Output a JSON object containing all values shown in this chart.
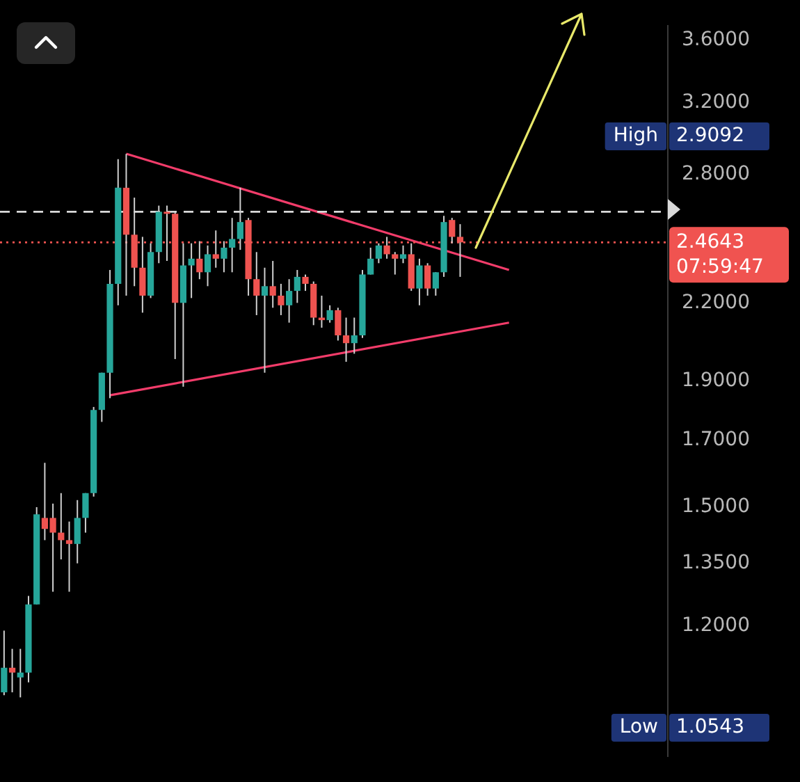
{
  "chart_data": {
    "type": "candlestick",
    "categories": [
      null,
      null,
      null,
      null,
      null,
      null,
      null,
      null,
      null,
      null,
      null,
      null,
      null,
      null,
      null,
      null,
      null,
      null,
      null,
      null,
      null,
      null,
      null,
      null,
      null,
      null,
      null,
      null,
      null,
      null,
      null,
      null,
      null,
      null,
      null,
      null,
      null,
      null,
      null,
      null,
      null,
      null,
      null,
      null,
      null,
      null,
      null,
      null,
      null,
      null,
      null,
      null,
      null,
      null,
      null,
      null,
      null,
      null,
      null,
      null,
      null,
      null,
      null,
      null,
      null,
      null,
      null,
      null,
      null,
      null,
      null,
      null,
      null,
      null,
      null,
      null,
      null,
      null,
      null,
      null,
      null,
      null
    ],
    "series": [
      {
        "ohlc": [
          [
            1.06,
            1.19,
            1.0543,
            1.11
          ],
          [
            1.11,
            1.15,
            1.06,
            1.1
          ],
          [
            1.09,
            1.15,
            1.05,
            1.1
          ],
          [
            1.1,
            1.27,
            1.08,
            1.25
          ],
          [
            1.25,
            1.5,
            1.25,
            1.48
          ],
          [
            1.47,
            1.63,
            1.41,
            1.44
          ],
          [
            1.47,
            1.51,
            1.28,
            1.43
          ],
          [
            1.43,
            1.54,
            1.36,
            1.41
          ],
          [
            1.41,
            1.46,
            1.28,
            1.4
          ],
          [
            1.4,
            1.52,
            1.35,
            1.47
          ],
          [
            1.47,
            1.54,
            1.43,
            1.54
          ],
          [
            1.54,
            1.81,
            1.53,
            1.8
          ],
          [
            1.8,
            1.93,
            1.76,
            1.93
          ],
          [
            1.93,
            2.34,
            1.84,
            2.28
          ],
          [
            2.28,
            2.88,
            2.19,
            2.73
          ],
          [
            2.73,
            2.9092,
            2.23,
            2.5
          ],
          [
            2.5,
            2.68,
            2.27,
            2.35
          ],
          [
            2.35,
            2.49,
            2.16,
            2.23
          ],
          [
            2.23,
            2.46,
            2.22,
            2.42
          ],
          [
            2.42,
            2.64,
            2.37,
            2.61
          ],
          [
            2.61,
            2.64,
            2.38,
            2.6
          ],
          [
            2.6,
            2.61,
            1.98,
            2.2
          ],
          [
            2.2,
            2.46,
            1.88,
            2.36
          ],
          [
            2.36,
            2.46,
            2.22,
            2.39
          ],
          [
            2.39,
            2.47,
            2.3,
            2.33
          ],
          [
            2.33,
            2.45,
            2.27,
            2.41
          ],
          [
            2.41,
            2.52,
            2.35,
            2.39
          ],
          [
            2.39,
            2.47,
            2.33,
            2.44
          ],
          [
            2.44,
            2.58,
            2.33,
            2.48
          ],
          [
            2.48,
            2.73,
            2.43,
            2.56
          ],
          [
            2.57,
            2.58,
            2.23,
            2.3
          ],
          [
            2.3,
            2.42,
            2.15,
            2.23
          ],
          [
            2.23,
            2.35,
            1.93,
            2.27
          ],
          [
            2.27,
            2.38,
            2.18,
            2.23
          ],
          [
            2.23,
            2.28,
            2.15,
            2.19
          ],
          [
            2.19,
            2.3,
            2.12,
            2.25
          ],
          [
            2.25,
            2.34,
            2.2,
            2.31
          ],
          [
            2.31,
            2.32,
            2.25,
            2.28
          ],
          [
            2.28,
            2.29,
            2.11,
            2.14
          ],
          [
            2.14,
            2.23,
            2.1,
            2.13
          ],
          [
            2.13,
            2.19,
            2.12,
            2.17
          ],
          [
            2.17,
            2.18,
            2.05,
            2.07
          ],
          [
            2.07,
            2.14,
            1.97,
            2.04
          ],
          [
            2.04,
            2.14,
            2.0,
            2.07
          ],
          [
            2.07,
            2.34,
            2.06,
            2.32
          ],
          [
            2.32,
            2.44,
            2.32,
            2.39
          ],
          [
            2.39,
            2.46,
            2.37,
            2.45
          ],
          [
            2.45,
            2.49,
            2.39,
            2.41
          ],
          [
            2.41,
            2.42,
            2.32,
            2.39
          ],
          [
            2.39,
            2.45,
            2.37,
            2.41
          ],
          [
            2.41,
            2.46,
            2.25,
            2.26
          ],
          [
            2.26,
            2.39,
            2.19,
            2.36
          ],
          [
            2.36,
            2.37,
            2.23,
            2.26
          ],
          [
            2.26,
            2.33,
            2.23,
            2.33
          ],
          [
            2.33,
            2.59,
            2.31,
            2.56
          ],
          [
            2.57,
            2.58,
            2.46,
            2.49
          ],
          [
            2.49,
            2.55,
            2.31,
            2.4643
          ],
          null,
          null,
          null,
          null,
          null,
          null,
          null,
          null,
          null,
          null,
          null,
          null,
          null,
          null,
          null,
          null,
          null,
          null,
          null,
          null,
          null,
          null,
          null,
          null,
          null
        ],
        "colors": [
          "#26a69a",
          "#ef5350",
          "#26a69a",
          "#26a69a",
          "#26a69a",
          "#ef5350",
          "#ef5350",
          "#ef5350",
          "#ef5350",
          "#26a69a",
          "#26a69a",
          "#26a69a",
          "#26a69a",
          "#26a69a",
          "#26a69a",
          "#ef5350",
          "#ef5350",
          "#ef5350",
          "#26a69a",
          "#26a69a",
          "#ef5350",
          "#ef5350",
          "#26a69a",
          "#26a69a",
          "#ef5350",
          "#26a69a",
          "#ef5350",
          "#26a69a",
          "#26a69a",
          "#26a69a",
          "#ef5350",
          "#ef5350",
          "#26a69a",
          "#ef5350",
          "#ef5350",
          "#26a69a",
          "#26a69a",
          "#ef5350",
          "#ef5350",
          "#ef5350",
          "#26a69a",
          "#ef5350",
          "#ef5350",
          "#26a69a",
          "#26a69a",
          "#26a69a",
          "#26a69a",
          "#ef5350",
          "#ef5350",
          "#26a69a",
          "#ef5350",
          "#26a69a",
          "#ef5350",
          "#26a69a",
          "#26a69a",
          "#ef5350",
          "#ef5350",
          null,
          null,
          null,
          null,
          null,
          null,
          null,
          null,
          null,
          null,
          null,
          null,
          null,
          null,
          null,
          null,
          null,
          null,
          null,
          null,
          null,
          null,
          null,
          null,
          null
        ]
      },
      {
        "type": "line",
        "color": "#f23c6a",
        "values": [
          null,
          null,
          null,
          null,
          null,
          null,
          null,
          null,
          null,
          null,
          null,
          null,
          null,
          null,
          null,
          2.91,
          null,
          null,
          null,
          null,
          null,
          null,
          null,
          null,
          null,
          null,
          null,
          null,
          null,
          null,
          null,
          null,
          null,
          null,
          null,
          null,
          null,
          null,
          null,
          null,
          null,
          null,
          null,
          null,
          null,
          null,
          null,
          null,
          null,
          null,
          null,
          null,
          null,
          null,
          null,
          null,
          null,
          null,
          null,
          null,
          null,
          null,
          2.34,
          null,
          null,
          null,
          null,
          null,
          null,
          null,
          null,
          null,
          null,
          null,
          null,
          null,
          null,
          null,
          null,
          null,
          null,
          null
        ]
      },
      {
        "type": "line",
        "color": "#f23c6a",
        "values": [
          null,
          null,
          null,
          null,
          null,
          null,
          null,
          null,
          null,
          null,
          null,
          null,
          null,
          1.85,
          null,
          null,
          null,
          null,
          null,
          null,
          null,
          null,
          null,
          null,
          null,
          null,
          null,
          null,
          null,
          null,
          null,
          null,
          null,
          null,
          null,
          null,
          null,
          null,
          null,
          null,
          null,
          null,
          null,
          null,
          null,
          null,
          null,
          null,
          null,
          null,
          null,
          null,
          null,
          null,
          null,
          null,
          null,
          null,
          null,
          null,
          null,
          null,
          2.12,
          null,
          null,
          null,
          null,
          null,
          null,
          null,
          null,
          null,
          null,
          null,
          null,
          null,
          null,
          null,
          null,
          null,
          null,
          null
        ]
      }
    ],
    "ylim": [
      0.94,
      3.7
    ],
    "yticks": [
      {
        "value": 1.2,
        "label": "1.2000"
      },
      {
        "value": 1.35,
        "label": "1.3500"
      },
      {
        "value": 1.5,
        "label": "1.5000"
      },
      {
        "value": 1.7,
        "label": "1.7000"
      },
      {
        "value": 1.9,
        "label": "1.9000"
      },
      {
        "value": 2.2,
        "label": "2.2000"
      },
      {
        "value": 2.8,
        "label": "2.8000"
      },
      {
        "value": 3.2,
        "label": "3.2000"
      },
      {
        "value": 3.6,
        "label": "3.6000"
      }
    ],
    "log": "y",
    "grid": false,
    "legend": false,
    "tick_labels": "y",
    "marker": "none",
    "ref_lines": [
      {
        "axis": "y",
        "value": 2.61,
        "color": "#d9d9d9",
        "line_style": "dashed"
      },
      {
        "axis": "y",
        "value": 2.4643,
        "label": "2.4643",
        "color": "#f05350",
        "line_style": "dotted"
      }
    ],
    "annotations": [
      "High",
      "2.9092",
      "Low",
      "1.0543",
      "07:59:47"
    ]
  }
}
